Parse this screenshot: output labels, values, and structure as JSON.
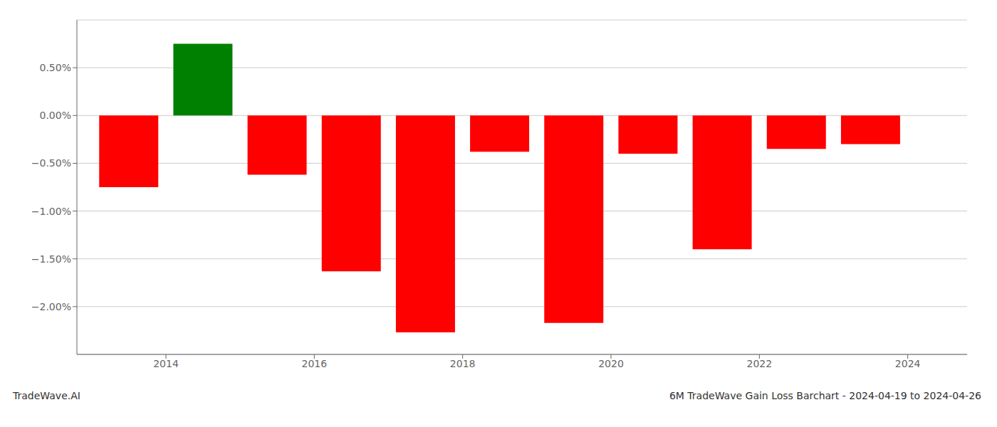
{
  "chart_data": {
    "type": "bar",
    "x": [
      2013.5,
      2014.5,
      2015.5,
      2016.5,
      2017.5,
      2018.5,
      2019.5,
      2020.5,
      2021.5,
      2022.5,
      2023.5
    ],
    "values": [
      -0.75,
      0.75,
      -0.62,
      -1.63,
      -2.27,
      -0.38,
      -2.17,
      -0.4,
      -1.4,
      -0.35,
      -0.3
    ],
    "colors": [
      "red",
      "green",
      "red",
      "red",
      "red",
      "red",
      "red",
      "red",
      "red",
      "red",
      "red"
    ],
    "xlim": [
      2012.8,
      2024.8
    ],
    "xticks": [
      2014,
      2016,
      2018,
      2020,
      2022,
      2024
    ],
    "ylim": [
      -2.5,
      1.0
    ],
    "yticks": [
      {
        "value": -2.0,
        "label": "−2.00%"
      },
      {
        "value": -1.5,
        "label": "−1.50%"
      },
      {
        "value": -1.0,
        "label": "−1.00%"
      },
      {
        "value": -0.5,
        "label": "−0.50%"
      },
      {
        "value": 0.0,
        "label": "0.00%"
      },
      {
        "value": 0.5,
        "label": "0.50%"
      }
    ],
    "grid": true,
    "annotations": [
      "TradeWave.AI",
      "6M TradeWave Gain Loss Barchart - 2024-04-19 to 2024-04-26"
    ]
  }
}
